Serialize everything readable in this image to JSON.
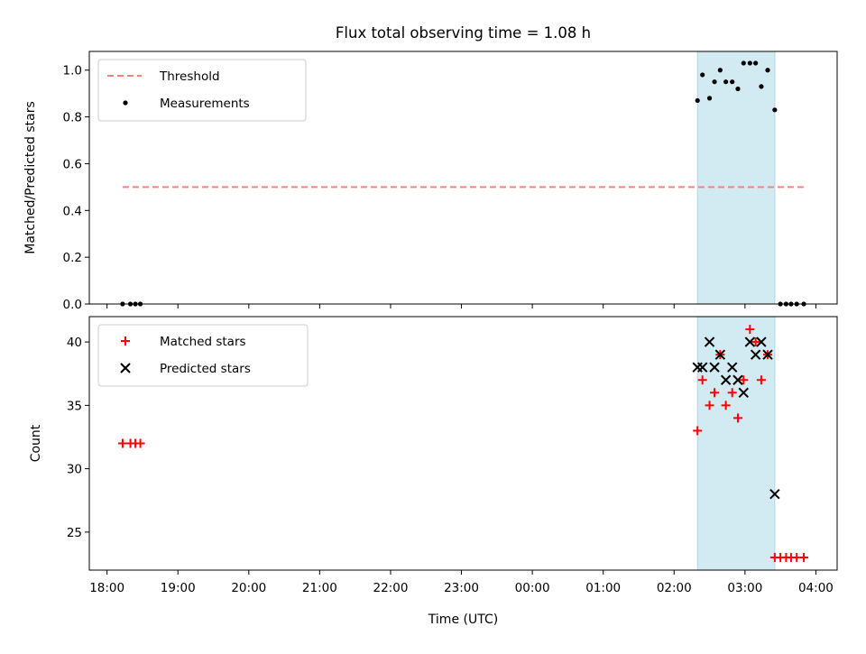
{
  "chart_data": {
    "type": "scatter",
    "title": "Flux total observing time = 1.08 h",
    "xlabel": "Time (UTC)",
    "x_tick_labels": [
      "18:00",
      "19:00",
      "20:00",
      "21:00",
      "22:00",
      "23:00",
      "00:00",
      "01:00",
      "02:00",
      "03:00",
      "04:00"
    ],
    "x_tick_hours": [
      0,
      1,
      2,
      3,
      4,
      5,
      6,
      7,
      8,
      9,
      10
    ],
    "xlim_hours": [
      -0.25,
      10.3
    ],
    "x_unit_note": "x values are hours after 18:00 UTC",
    "observing_window_hours": [
      8.33,
      9.42
    ],
    "observing_window_color": "#add8e6",
    "panels": [
      {
        "name": "ratio",
        "ylabel": "Matched/Predicted stars",
        "ylim": [
          0,
          1.08
        ],
        "y_ticks": [
          0.0,
          0.2,
          0.4,
          0.6,
          0.8,
          1.0
        ],
        "y_tick_labels": [
          "0.0",
          "0.2",
          "0.4",
          "0.6",
          "0.8",
          "1.0"
        ],
        "legend_position": "upper left",
        "threshold": {
          "name": "Threshold",
          "y": 0.5,
          "x_range": [
            0.22,
            9.83
          ],
          "color": "#ff7f7f"
        },
        "series": [
          {
            "name": "Measurements",
            "marker": "dot",
            "color": "#000000",
            "points": [
              [
                0.22,
                0.0
              ],
              [
                0.33,
                0.0
              ],
              [
                0.4,
                0.0
              ],
              [
                0.47,
                0.0
              ],
              [
                8.33,
                0.87
              ],
              [
                8.4,
                0.98
              ],
              [
                8.5,
                0.88
              ],
              [
                8.57,
                0.95
              ],
              [
                8.65,
                1.0
              ],
              [
                8.73,
                0.95
              ],
              [
                8.82,
                0.95
              ],
              [
                8.9,
                0.92
              ],
              [
                8.98,
                1.03
              ],
              [
                9.07,
                1.03
              ],
              [
                9.15,
                1.03
              ],
              [
                9.23,
                0.93
              ],
              [
                9.32,
                1.0
              ],
              [
                9.42,
                0.83
              ],
              [
                9.5,
                0.0
              ],
              [
                9.58,
                0.0
              ],
              [
                9.65,
                0.0
              ],
              [
                9.73,
                0.0
              ],
              [
                9.83,
                0.0
              ]
            ]
          }
        ]
      },
      {
        "name": "count",
        "ylabel": "Count",
        "ylim": [
          22.0,
          42.0
        ],
        "y_ticks": [
          25,
          30,
          35,
          40
        ],
        "y_tick_labels": [
          "25",
          "30",
          "35",
          "40"
        ],
        "legend_position": "upper left",
        "series": [
          {
            "name": "Matched stars",
            "marker": "plus",
            "color": "#ff0000",
            "points": [
              [
                0.22,
                32
              ],
              [
                0.33,
                32
              ],
              [
                0.4,
                32
              ],
              [
                0.47,
                32
              ],
              [
                8.33,
                33
              ],
              [
                8.4,
                37
              ],
              [
                8.5,
                35
              ],
              [
                8.57,
                36
              ],
              [
                8.65,
                39
              ],
              [
                8.73,
                35
              ],
              [
                8.82,
                36
              ],
              [
                8.9,
                34
              ],
              [
                8.98,
                37
              ],
              [
                9.07,
                41
              ],
              [
                9.15,
                40
              ],
              [
                9.23,
                37
              ],
              [
                9.32,
                39
              ],
              [
                9.42,
                23
              ],
              [
                9.5,
                23
              ],
              [
                9.58,
                23
              ],
              [
                9.65,
                23
              ],
              [
                9.73,
                23
              ],
              [
                9.83,
                23
              ]
            ]
          },
          {
            "name": "Predicted stars",
            "marker": "x",
            "color": "#000000",
            "points": [
              [
                8.33,
                38
              ],
              [
                8.4,
                38
              ],
              [
                8.5,
                40
              ],
              [
                8.57,
                38
              ],
              [
                8.65,
                39
              ],
              [
                8.73,
                37
              ],
              [
                8.82,
                38
              ],
              [
                8.9,
                37
              ],
              [
                8.98,
                36
              ],
              [
                9.07,
                40
              ],
              [
                9.15,
                39
              ],
              [
                9.23,
                40
              ],
              [
                9.32,
                39
              ],
              [
                9.42,
                28
              ]
            ]
          }
        ]
      }
    ]
  }
}
